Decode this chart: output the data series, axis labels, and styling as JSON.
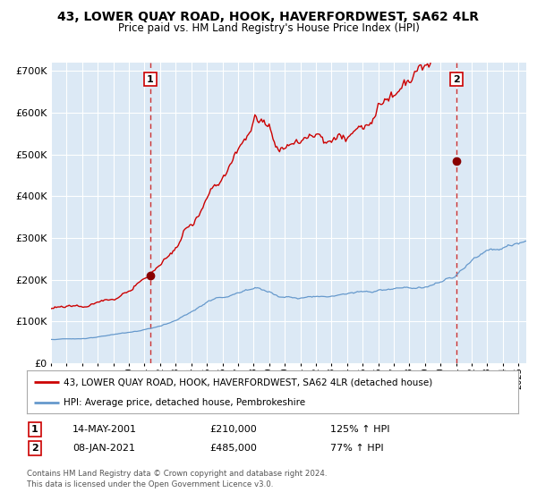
{
  "title": "43, LOWER QUAY ROAD, HOOK, HAVERFORDWEST, SA62 4LR",
  "subtitle": "Price paid vs. HM Land Registry's House Price Index (HPI)",
  "bg_color": "#dce9f5",
  "red_line_color": "#cc0000",
  "blue_line_color": "#6699cc",
  "marker_color": "#880000",
  "dashed_color": "#cc3333",
  "ylim": [
    0,
    720000
  ],
  "yticks": [
    0,
    100000,
    200000,
    300000,
    400000,
    500000,
    600000,
    700000
  ],
  "ytick_labels": [
    "£0",
    "£100K",
    "£200K",
    "£300K",
    "£400K",
    "£500K",
    "£600K",
    "£700K"
  ],
  "sale1": {
    "date_num": 2001.37,
    "price": 210000,
    "label": "1",
    "date_str": "14-MAY-2001",
    "pct": "125%"
  },
  "sale2": {
    "date_num": 2021.02,
    "price": 485000,
    "label": "2",
    "date_str": "08-JAN-2021",
    "pct": "77%"
  },
  "legend_red": "43, LOWER QUAY ROAD, HOOK, HAVERFORDWEST, SA62 4LR (detached house)",
  "legend_blue": "HPI: Average price, detached house, Pembrokeshire",
  "footer": "Contains HM Land Registry data © Crown copyright and database right 2024.\nThis data is licensed under the Open Government Licence v3.0."
}
